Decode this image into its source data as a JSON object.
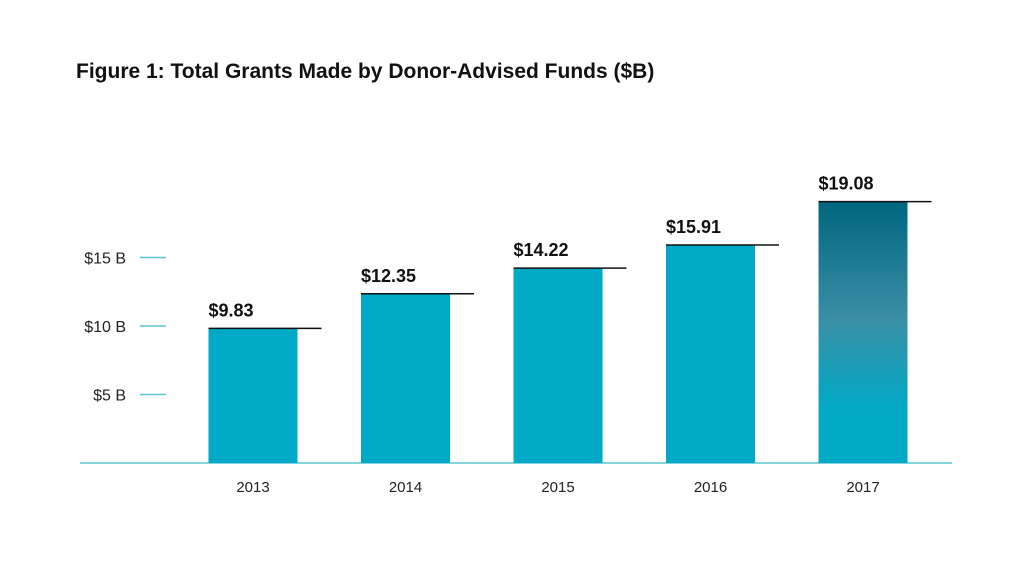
{
  "chart_data": {
    "type": "bar",
    "title": "Figure 1: Total Grants Made by Donor-Advised Funds ($B)",
    "xlabel": "",
    "ylabel": "",
    "categories": [
      "2013",
      "2014",
      "2015",
      "2016",
      "2017"
    ],
    "values": [
      9.83,
      12.35,
      14.22,
      15.91,
      19.08
    ],
    "value_labels": [
      "$9.83",
      "$12.35",
      "$14.22",
      "$15.91",
      "$19.08"
    ],
    "y_ticks": [
      5,
      10,
      15
    ],
    "y_tick_labels": [
      "$5 B",
      "$10 B",
      "$15 B"
    ],
    "ylim": [
      0,
      20
    ],
    "grid": false,
    "legend": "none",
    "colors": {
      "bar": "#00a9c6",
      "bar_highlight_top": "#00657f",
      "bar_highlight_mid": "#3a8fa6",
      "axis": "#5cc6d6",
      "cap_line": "#111111"
    }
  }
}
